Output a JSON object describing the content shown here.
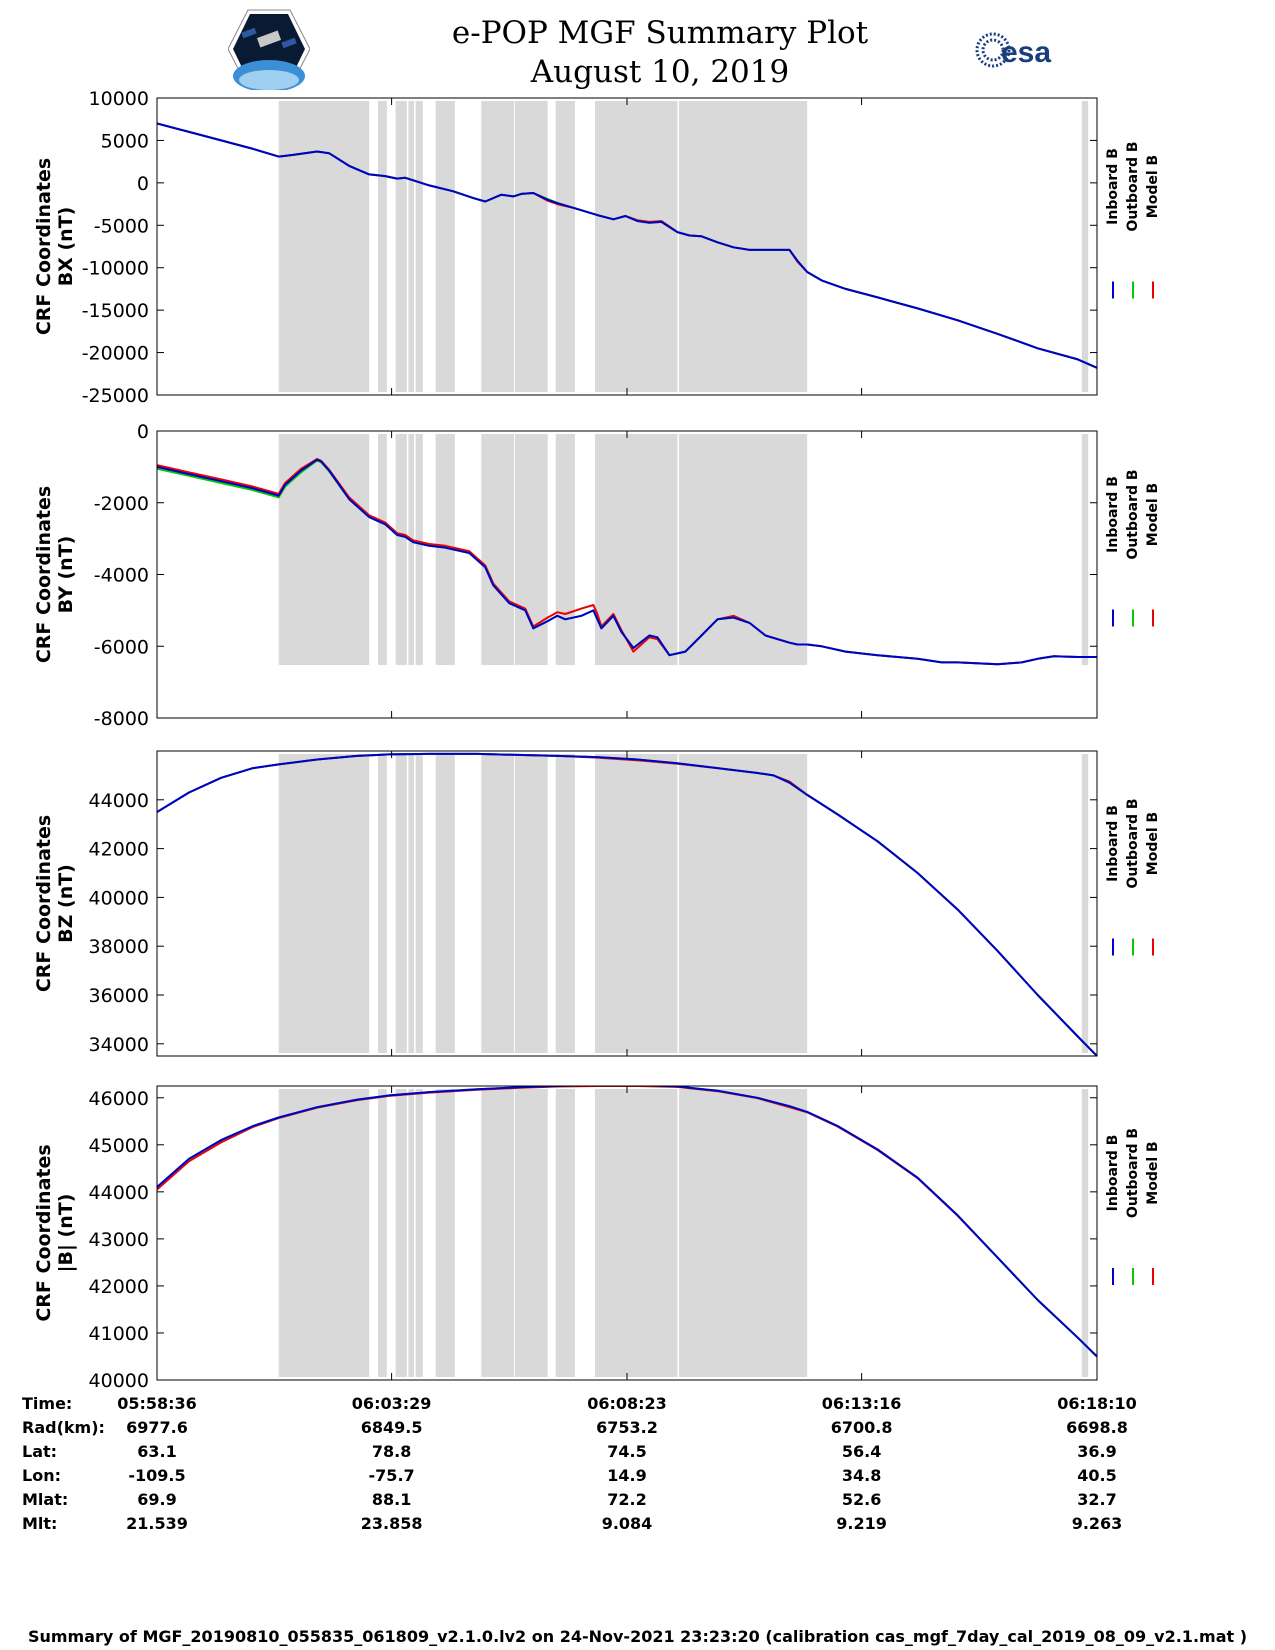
{
  "header": {
    "title_line1": "e-POP MGF Summary Plot",
    "title_line2": "August 10, 2019",
    "logos": [
      "mission-patch-logo",
      "esa-logo"
    ],
    "esa_text": "esa"
  },
  "legend": {
    "items": [
      {
        "label": "Inboard B",
        "color": "#0000cc"
      },
      {
        "label": "Outboard B",
        "color": "#00cc00"
      },
      {
        "label": "Model B",
        "color": "#ee0000"
      }
    ]
  },
  "x_axis": {
    "time_range_s": [
      0,
      1174
    ],
    "tick_times_s": [
      0,
      293,
      587,
      880,
      1174
    ],
    "tick_labels": [
      "05:58:36",
      "06:03:29",
      "06:08:23",
      "06:13:16",
      "06:18:10"
    ]
  },
  "gaps": {
    "note": "grey shaded intervals (seconds from 05:58:36)",
    "intervals": [
      [
        152,
        265
      ],
      [
        276,
        287
      ],
      [
        298,
        312
      ],
      [
        314,
        321
      ],
      [
        323,
        332
      ],
      [
        348,
        372
      ],
      [
        405,
        446
      ],
      [
        447,
        488
      ],
      [
        498,
        522
      ],
      [
        547,
        650
      ],
      [
        652,
        812
      ],
      [
        1155,
        1163
      ]
    ]
  },
  "chart_data": [
    {
      "type": "line",
      "name": "bx",
      "ylabel_line1": "CRF Coordinates",
      "ylabel_line2": "BX (nT)",
      "ylim": [
        -25000,
        10000
      ],
      "yticks": [
        10000,
        5000,
        0,
        -5000,
        -10000,
        -15000,
        -20000,
        -25000
      ],
      "x": [
        0,
        40,
        80,
        120,
        152,
        170,
        200,
        215,
        240,
        265,
        285,
        300,
        310,
        320,
        340,
        370,
        395,
        410,
        430,
        445,
        455,
        470,
        488,
        500,
        522,
        550,
        570,
        585,
        600,
        615,
        630,
        650,
        665,
        680,
        700,
        720,
        740,
        760,
        790,
        800,
        812,
        830,
        860,
        900,
        950,
        1000,
        1050,
        1100,
        1150,
        1174
      ],
      "series": [
        {
          "name": "Inboard B",
          "values": [
            7000,
            6000,
            5000,
            4000,
            3100,
            3300,
            3700,
            3500,
            2000,
            1000,
            800,
            500,
            600,
            300,
            -300,
            -1000,
            -1800,
            -2200,
            -1400,
            -1600,
            -1300,
            -1200,
            -2000,
            -2400,
            -3000,
            -3800,
            -4300,
            -3900,
            -4500,
            -4700,
            -4600,
            -5800,
            -6200,
            -6300,
            -7000,
            -7600,
            -7900,
            -7900,
            -7900,
            -9200,
            -10500,
            -11500,
            -12500,
            -13500,
            -14800,
            -16200,
            -17800,
            -19500,
            -20800,
            -21800
          ]
        },
        {
          "name": "Outboard B",
          "values": [
            7000,
            6000,
            5000,
            4000,
            3100,
            3300,
            3700,
            3500,
            2000,
            1000,
            800,
            500,
            600,
            300,
            -300,
            -1000,
            -1800,
            -2200,
            -1400,
            -1600,
            -1300,
            -1200,
            -1900,
            -2350,
            -3000,
            -3800,
            -4300,
            -3900,
            -4500,
            -4700,
            -4600,
            -5800,
            -6200,
            -6300,
            -7000,
            -7600,
            -7900,
            -7900,
            -7900,
            -9200,
            -10500,
            -11500,
            -12500,
            -13500,
            -14800,
            -16200,
            -17800,
            -19500,
            -20800,
            -21800
          ]
        },
        {
          "name": "Model B",
          "values": [
            7000,
            6000,
            5000,
            4000,
            3100,
            3300,
            3700,
            3500,
            2000,
            1000,
            800,
            500,
            600,
            300,
            -300,
            -1000,
            -1800,
            -2200,
            -1400,
            -1600,
            -1300,
            -1200,
            -2100,
            -2500,
            -3000,
            -3800,
            -4300,
            -3900,
            -4400,
            -4600,
            -4500,
            -5800,
            -6200,
            -6300,
            -7000,
            -7600,
            -7900,
            -7900,
            -7900,
            -9300,
            -10500,
            -11500,
            -12500,
            -13500,
            -14800,
            -16200,
            -17800,
            -19500,
            -20800,
            -21800
          ]
        }
      ]
    },
    {
      "type": "line",
      "name": "by",
      "ylabel_line1": "CRF Coordinates",
      "ylabel_line2": "BY (nT)",
      "ylim": [
        -8000,
        0
      ],
      "yticks": [
        0,
        -2000,
        -4000,
        -6000,
        -8000
      ],
      "x": [
        0,
        40,
        80,
        120,
        152,
        160,
        180,
        200,
        205,
        215,
        240,
        265,
        285,
        300,
        310,
        320,
        340,
        360,
        390,
        410,
        420,
        440,
        460,
        470,
        488,
        500,
        510,
        530,
        545,
        550,
        555,
        570,
        580,
        595,
        615,
        625,
        640,
        660,
        680,
        700,
        720,
        740,
        760,
        790,
        800,
        812,
        830,
        860,
        900,
        950,
        980,
        1000,
        1050,
        1080,
        1100,
        1120,
        1150,
        1174
      ],
      "series": [
        {
          "name": "Inboard B",
          "values": [
            -1000,
            -1200,
            -1400,
            -1600,
            -1800,
            -1500,
            -1100,
            -800,
            -850,
            -1100,
            -1900,
            -2400,
            -2600,
            -2900,
            -2950,
            -3100,
            -3200,
            -3250,
            -3400,
            -3800,
            -4300,
            -4800,
            -5000,
            -5500,
            -5300,
            -5150,
            -5250,
            -5150,
            -5000,
            -5250,
            -5500,
            -5150,
            -5600,
            -6050,
            -5700,
            -5750,
            -6250,
            -6150,
            -5700,
            -5250,
            -5200,
            -5350,
            -5700,
            -5900,
            -5950,
            -5950,
            -6000,
            -6150,
            -6250,
            -6350,
            -6450,
            -6450,
            -6500,
            -6450,
            -6350,
            -6280,
            -6300,
            -6300
          ]
        },
        {
          "name": "Outboard B",
          "values": [
            -1050,
            -1250,
            -1450,
            -1650,
            -1850,
            -1550,
            -1150,
            -820,
            -870,
            -1120,
            -1900,
            -2400,
            -2600,
            -2900,
            -2950,
            -3100,
            -3200,
            -3250,
            -3400,
            -3800,
            -4300,
            -4800,
            -5000,
            -5500,
            -5300,
            -5150,
            -5250,
            -5150,
            -5000,
            -5250,
            -5500,
            -5150,
            -5600,
            -6050,
            -5700,
            -5750,
            -6250,
            -6150,
            -5700,
            -5250,
            -5200,
            -5350,
            -5700,
            -5900,
            -5950,
            -5950,
            -6000,
            -6150,
            -6250,
            -6350,
            -6450,
            -6450,
            -6500,
            -6450,
            -6350,
            -6280,
            -6300,
            -6300
          ]
        },
        {
          "name": "Model B",
          "values": [
            -950,
            -1150,
            -1350,
            -1550,
            -1750,
            -1450,
            -1050,
            -780,
            -830,
            -1080,
            -1850,
            -2350,
            -2550,
            -2850,
            -2900,
            -3050,
            -3150,
            -3200,
            -3350,
            -3750,
            -4250,
            -4750,
            -4950,
            -5450,
            -5200,
            -5050,
            -5100,
            -4950,
            -4850,
            -5100,
            -5450,
            -5100,
            -5550,
            -6150,
            -5750,
            -5800,
            -6250,
            -6150,
            -5700,
            -5250,
            -5150,
            -5350,
            -5700,
            -5900,
            -5950,
            -5950,
            -6000,
            -6150,
            -6250,
            -6350,
            -6450,
            -6450,
            -6500,
            -6450,
            -6350,
            -6280,
            -6300,
            -6300
          ]
        }
      ]
    },
    {
      "type": "line",
      "name": "bz",
      "ylabel_line1": "CRF Coordinates",
      "ylabel_line2": "BZ (nT)",
      "ylim": [
        33500,
        46000
      ],
      "yticks": [
        44000,
        42000,
        40000,
        38000,
        36000,
        34000
      ],
      "x": [
        0,
        40,
        80,
        120,
        152,
        200,
        250,
        290,
        340,
        400,
        450,
        500,
        550,
        600,
        650,
        700,
        750,
        770,
        790,
        812,
        850,
        900,
        950,
        1000,
        1050,
        1100,
        1150,
        1174
      ],
      "series": [
        {
          "name": "Inboard B",
          "values": [
            43500,
            44300,
            44900,
            45300,
            45450,
            45650,
            45800,
            45860,
            45880,
            45880,
            45840,
            45800,
            45750,
            45650,
            45500,
            45300,
            45100,
            45000,
            44700,
            44200,
            43400,
            42300,
            41000,
            39500,
            37800,
            36000,
            34300,
            33500
          ]
        },
        {
          "name": "Outboard B",
          "values": [
            43500,
            44300,
            44900,
            45300,
            45450,
            45650,
            45800,
            45860,
            45880,
            45880,
            45840,
            45800,
            45750,
            45650,
            45500,
            45300,
            45100,
            45000,
            44700,
            44200,
            43400,
            42300,
            41000,
            39500,
            37800,
            36000,
            34300,
            33500
          ]
        },
        {
          "name": "Model B",
          "values": [
            43500,
            44300,
            44900,
            45300,
            45450,
            45650,
            45800,
            45860,
            45880,
            45880,
            45840,
            45800,
            45730,
            45620,
            45480,
            45300,
            45100,
            45000,
            44750,
            44200,
            43400,
            42300,
            41000,
            39500,
            37800,
            36000,
            34300,
            33500
          ]
        }
      ]
    },
    {
      "type": "line",
      "name": "btotal",
      "ylabel_line1": "CRF Coordinates",
      "ylabel_line2": "|B| (nT)",
      "ylim": [
        40000,
        46250
      ],
      "yticks": [
        46000,
        45000,
        44000,
        43000,
        42000,
        41000,
        40000
      ],
      "x": [
        0,
        40,
        80,
        120,
        152,
        200,
        250,
        290,
        340,
        400,
        450,
        500,
        550,
        600,
        650,
        700,
        750,
        790,
        812,
        850,
        900,
        950,
        1000,
        1050,
        1100,
        1150,
        1174
      ],
      "series": [
        {
          "name": "Inboard B",
          "values": [
            44100,
            44700,
            45100,
            45400,
            45580,
            45800,
            45960,
            46050,
            46120,
            46180,
            46220,
            46250,
            46270,
            46270,
            46240,
            46150,
            46000,
            45820,
            45700,
            45400,
            44900,
            44300,
            43500,
            42600,
            41700,
            40900,
            40500
          ]
        },
        {
          "name": "Outboard B",
          "values": [
            44100,
            44700,
            45100,
            45400,
            45580,
            45800,
            45960,
            46050,
            46120,
            46180,
            46220,
            46250,
            46270,
            46270,
            46240,
            46150,
            46000,
            45820,
            45700,
            45400,
            44900,
            44300,
            43500,
            42600,
            41700,
            40900,
            40500
          ]
        },
        {
          "name": "Model B",
          "values": [
            44050,
            44650,
            45050,
            45380,
            45570,
            45790,
            45950,
            46040,
            46110,
            46170,
            46210,
            46240,
            46250,
            46250,
            46230,
            46140,
            45990,
            45800,
            45690,
            45390,
            44890,
            44290,
            43490,
            42600,
            41700,
            40900,
            40500
          ]
        }
      ]
    }
  ],
  "ephemeris": {
    "rows": [
      {
        "label": "Time:",
        "values": [
          "05:58:36",
          "06:03:29",
          "06:08:23",
          "06:13:16",
          "06:18:10"
        ]
      },
      {
        "label": "Rad(km):",
        "values": [
          "6977.6",
          "6849.5",
          "6753.2",
          "6700.8",
          "6698.8"
        ]
      },
      {
        "label": "Lat:",
        "values": [
          "63.1",
          "78.8",
          "74.5",
          "56.4",
          "36.9"
        ]
      },
      {
        "label": "Lon:",
        "values": [
          "-109.5",
          "-75.7",
          "14.9",
          "34.8",
          "40.5"
        ]
      },
      {
        "label": "Mlat:",
        "values": [
          "69.9",
          "88.1",
          "72.2",
          "52.6",
          "32.7"
        ]
      },
      {
        "label": "Mlt:",
        "values": [
          "21.539",
          "23.858",
          "9.084",
          "9.219",
          "9.263"
        ]
      }
    ]
  },
  "footer": {
    "text": "Summary of MGF_20190810_055835_061809_v2.1.0.lv2 on 24-Nov-2021 23:23:20 (calibration cas_mgf_7day_cal_2019_08_09_v2.1.mat )"
  }
}
